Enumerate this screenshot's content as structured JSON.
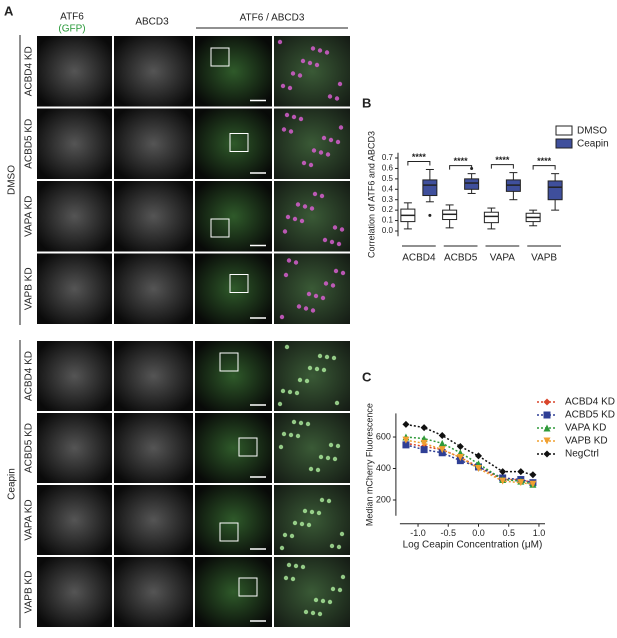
{
  "panel_labels": {
    "a": "A",
    "b": "B",
    "c": "C"
  },
  "panel_a": {
    "headers": {
      "channel_1": "ATF6",
      "channel_1_sub": "(GFP)",
      "channel_2": "ABCD3",
      "merge": "ATF6 / ABCD3"
    },
    "groups": [
      {
        "name": "DMSO",
        "rows": [
          "ACBD4 KD",
          "ACBD5 KD",
          "VAPA KD",
          "VAPB KD"
        ]
      },
      {
        "name": "Ceapin",
        "rows": [
          "ACBD4 KD",
          "ACBD5 KD",
          "VAPA KD",
          "VAPB KD"
        ]
      }
    ]
  },
  "chart_data": [
    {
      "type": "box",
      "y_label": "Correlation of ATF6 and ABCD3",
      "categories": [
        "ACBD4",
        "ACBD5",
        "VAPA",
        "VAPB"
      ],
      "significance": [
        "****",
        "****",
        "****",
        "****"
      ],
      "ylim": [
        -0.05,
        0.75
      ],
      "yticks": [
        {
          "value": 0,
          "label": "0.0"
        },
        {
          "value": 0.1,
          "label": "0.1"
        },
        {
          "value": 0.2,
          "label": "0.2"
        },
        {
          "value": 0.3,
          "label": "0.3"
        },
        {
          "value": 0.4,
          "label": "0.4"
        },
        {
          "value": 0.5,
          "label": "0.5"
        },
        {
          "value": 0.6,
          "label": "0.6"
        },
        {
          "value": 0.7,
          "label": "0.7"
        }
      ],
      "series": [
        {
          "name": "DMSO",
          "color": "#ffffff",
          "values": [
            {
              "min": 0.02,
              "q1": 0.09,
              "median": 0.15,
              "q3": 0.21,
              "max": 0.27
            },
            {
              "min": 0.03,
              "q1": 0.11,
              "median": 0.16,
              "q3": 0.2,
              "max": 0.25
            },
            {
              "min": 0.02,
              "q1": 0.08,
              "median": 0.14,
              "q3": 0.18,
              "max": 0.22
            },
            {
              "min": 0.05,
              "q1": 0.09,
              "median": 0.13,
              "q3": 0.17,
              "max": 0.2
            }
          ]
        },
        {
          "name": "Ceapin",
          "color": "#3f4f9c",
          "values": [
            {
              "min": 0.28,
              "q1": 0.34,
              "median": 0.44,
              "q3": 0.49,
              "max": 0.59,
              "outliers": [
                0.15
              ]
            },
            {
              "min": 0.36,
              "q1": 0.4,
              "median": 0.46,
              "q3": 0.5,
              "max": 0.55,
              "outliers": [
                0.6
              ]
            },
            {
              "min": 0.3,
              "q1": 0.38,
              "median": 0.44,
              "q3": 0.49,
              "max": 0.56
            },
            {
              "min": 0.2,
              "q1": 0.3,
              "median": 0.42,
              "q3": 0.48,
              "max": 0.55
            }
          ]
        }
      ]
    },
    {
      "type": "line",
      "y_label": "Median mCherry Fluorescence",
      "x_label": "Log Ceapin Concentration (μM)",
      "x": [
        -1.2,
        -0.9,
        -0.6,
        -0.3,
        0,
        0.4,
        0.7,
        0.9
      ],
      "xlim": [
        -1.3,
        1.1
      ],
      "xticks": [
        {
          "value": -1,
          "label": "-1.0"
        },
        {
          "value": -0.5,
          "label": "-0.5"
        },
        {
          "value": 0,
          "label": "0.0"
        },
        {
          "value": 0.5,
          "label": "0.5"
        },
        {
          "value": 1,
          "label": "1.0"
        }
      ],
      "ylim": [
        100,
        750
      ],
      "yticks": [
        200,
        400,
        600
      ],
      "series": [
        {
          "name": "ACBD4 KD",
          "color": "#d9452b",
          "marker": "diamond",
          "values": [
            560,
            540,
            520,
            470,
            410,
            330,
            330,
            310
          ]
        },
        {
          "name": "ACBD5 KD",
          "color": "#2f3f95",
          "marker": "square",
          "values": [
            550,
            520,
            500,
            450,
            410,
            340,
            330,
            310
          ]
        },
        {
          "name": "VAPA KD",
          "color": "#2f9a3a",
          "marker": "triangle",
          "values": [
            600,
            590,
            560,
            500,
            430,
            330,
            320,
            300
          ]
        },
        {
          "name": "VAPB KD",
          "color": "#f0a030",
          "marker": "triangle-down",
          "values": [
            580,
            560,
            520,
            470,
            400,
            320,
            310,
            300
          ]
        },
        {
          "name": "NegCtrl",
          "color": "#111111",
          "marker": "diamond",
          "values": [
            680,
            660,
            610,
            540,
            480,
            380,
            380,
            360
          ]
        }
      ]
    }
  ]
}
